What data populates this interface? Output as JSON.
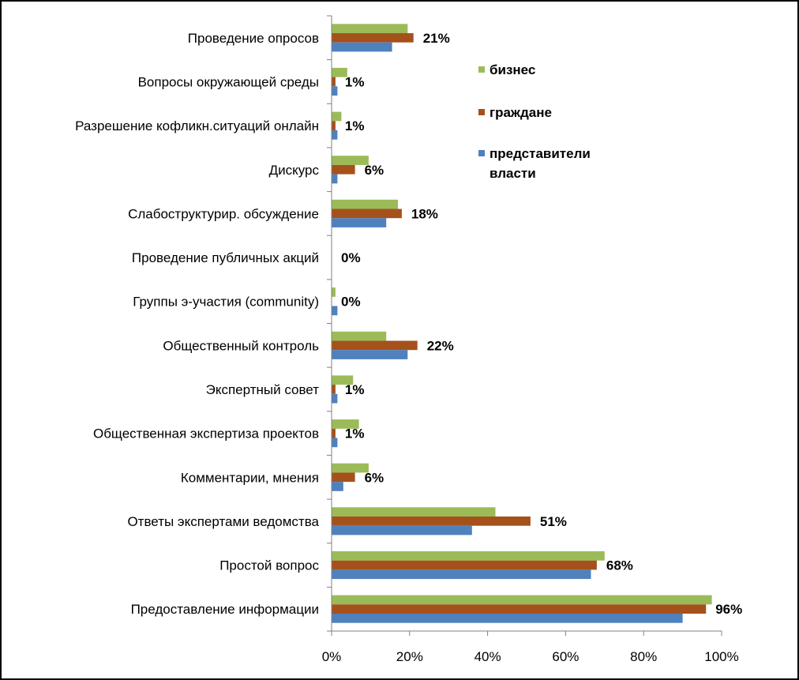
{
  "colors": {
    "business": "#9BBB59",
    "citizens": "#A5511C",
    "government": "#4F81BD"
  },
  "chart_data": {
    "type": "bar",
    "orientation": "horizontal",
    "categories": [
      "Проведение опросов",
      "Вопросы окружающей среды",
      "Разрешение кофликн.ситуаций онлайн",
      "Дискурс",
      "Слабоструктурир. обсуждение",
      "Проведение публичных акций",
      "Группы э-участия (community)",
      "Общественный контроль",
      "Экспертный совет",
      "Общественная экспертиза проектов",
      "Комментарии, мнения",
      "Ответы экспертами ведомства",
      "Простой вопрос",
      "Предоставление информации"
    ],
    "series": [
      {
        "name": "бизнес",
        "color": "#9BBB59",
        "values": [
          19.5,
          4,
          2.5,
          9.5,
          17,
          0,
          1,
          14,
          5.5,
          7,
          9.5,
          42,
          70,
          97.5
        ]
      },
      {
        "name": "граждане",
        "color": "#A5511C",
        "values": [
          21,
          1,
          1,
          6,
          18,
          0,
          0,
          22,
          1,
          1,
          6,
          51,
          68,
          96
        ]
      },
      {
        "name": "представители власти",
        "color": "#4F81BD",
        "values": [
          15.5,
          1.5,
          1.5,
          1.5,
          14,
          0,
          1.5,
          19.5,
          1.5,
          1.5,
          3,
          36,
          66.5,
          90
        ]
      }
    ],
    "data_labels": [
      "21%",
      "1%",
      "1%",
      "6%",
      "18%",
      "0%",
      "0%",
      "22%",
      "1%",
      "1%",
      "6%",
      "51%",
      "68%",
      "96%"
    ],
    "x_ticks": [
      "0%",
      "20%",
      "40%",
      "60%",
      "80%",
      "100%"
    ],
    "xlim": [
      0,
      100
    ],
    "grid": false,
    "legend_position": "right",
    "legend": [
      {
        "label_lines": [
          "бизнес"
        ],
        "color": "#9BBB59"
      },
      {
        "label_lines": [
          "граждане"
        ],
        "color": "#A5511C"
      },
      {
        "label_lines": [
          "представители",
          "власти"
        ],
        "color": "#4F81BD"
      }
    ],
    "title": "",
    "xlabel": "",
    "ylabel": ""
  }
}
